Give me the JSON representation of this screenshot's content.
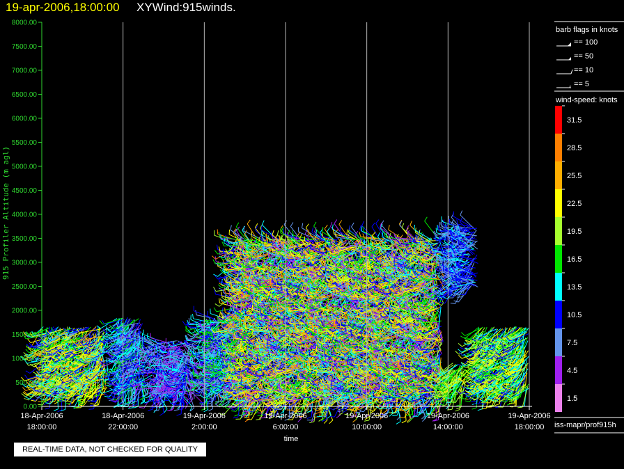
{
  "header": {
    "datetime": "19-apr-2006,18:00:00",
    "product": "XYWind:915winds."
  },
  "notice": "REAL-TIME DATA, NOT CHECKED FOR QUALITY",
  "legend": {
    "barb_title": "barb flags in knots",
    "barbs": [
      "== 100",
      "== 50",
      "== 10",
      "== 5"
    ],
    "speed_title": "wind-speed: knots",
    "scale": [
      {
        "label": "31.5",
        "color": "#ff0000"
      },
      {
        "label": "28.5",
        "color": "#ff7f00"
      },
      {
        "label": "25.5",
        "color": "#ffae00"
      },
      {
        "label": "22.5",
        "color": "#ffff00"
      },
      {
        "label": "19.5",
        "color": "#a6ff2e"
      },
      {
        "label": "16.5",
        "color": "#00e600"
      },
      {
        "label": "13.5",
        "color": "#00ffff"
      },
      {
        "label": "10.5",
        "color": "#0000ff"
      },
      {
        "label": "7.5",
        "color": "#6495ed"
      },
      {
        "label": "4.5",
        "color": "#a020f0"
      },
      {
        "label": "1.5",
        "color": "#ee82ee"
      }
    ],
    "source": "iss-mapr/prof915h"
  },
  "chart_data": {
    "type": "scatter",
    "mark": "wind barbs colored by wind speed (knots)",
    "ylabel": "915 Profiler Altitude (m agl)",
    "xlabel": "time",
    "ylim": [
      0,
      8000
    ],
    "yticks": [
      "0.00",
      "500.00",
      "1000.00",
      "1500.00",
      "2000.00",
      "2500.00",
      "3000.00",
      "3500.00",
      "4000.00",
      "4500.00",
      "5000.00",
      "5500.00",
      "6000.00",
      "6500.00",
      "7000.00",
      "7500.00",
      "8000.00"
    ],
    "xlim_hours": [
      0,
      24
    ],
    "xticks": [
      {
        "h": 0,
        "line1": "18-Apr-2006",
        "line2": "18:00:00"
      },
      {
        "h": 4,
        "line1": "18-Apr-2006",
        "line2": "22:00:00"
      },
      {
        "h": 8,
        "line1": "19-Apr-2006",
        "line2": "2:00:00"
      },
      {
        "h": 12,
        "line1": "19-Apr-2006",
        "line2": "6:00:00"
      },
      {
        "h": 16,
        "line1": "19-Apr-2006",
        "line2": "10:00:00"
      },
      {
        "h": 20,
        "line1": "19-Apr-2006",
        "line2": "14:00:00"
      },
      {
        "h": 24,
        "line1": "19-Apr-2006",
        "line2": "18:00:00"
      }
    ],
    "grid": true,
    "coverage": [
      {
        "h0": 0.0,
        "h1": 3.2,
        "alt_min": 400,
        "alt_max": 1650,
        "speed": [
          8,
          26
        ],
        "dir": [
          170,
          260
        ]
      },
      {
        "h0": 3.7,
        "h1": 5.0,
        "alt_min": 400,
        "alt_max": 1900,
        "speed": [
          5,
          16
        ],
        "dir": [
          160,
          260
        ]
      },
      {
        "h0": 5.3,
        "h1": 7.3,
        "alt_min": 300,
        "alt_max": 1400,
        "speed": [
          3,
          14
        ],
        "dir": [
          100,
          300
        ]
      },
      {
        "h0": 8.0,
        "h1": 9.5,
        "alt_min": 400,
        "alt_max": 1900,
        "speed": [
          5,
          18
        ],
        "dir": [
          140,
          300
        ]
      },
      {
        "h0": 9.5,
        "h1": 19.7,
        "alt_min": 150,
        "alt_max": 3500,
        "speed": [
          3,
          28
        ],
        "dir": [
          150,
          330
        ]
      },
      {
        "h0": 20.0,
        "h1": 20.9,
        "alt_min": 400,
        "alt_max": 900,
        "speed": [
          14,
          22
        ],
        "dir": [
          180,
          240
        ]
      },
      {
        "h0": 20.2,
        "h1": 21.5,
        "alt_min": 2500,
        "alt_max": 3800,
        "speed": [
          6,
          13
        ],
        "dir": [
          200,
          320
        ]
      },
      {
        "h0": 21.4,
        "h1": 24.0,
        "alt_min": 400,
        "alt_max": 1700,
        "speed": [
          10,
          24
        ],
        "dir": [
          180,
          250
        ]
      }
    ]
  }
}
